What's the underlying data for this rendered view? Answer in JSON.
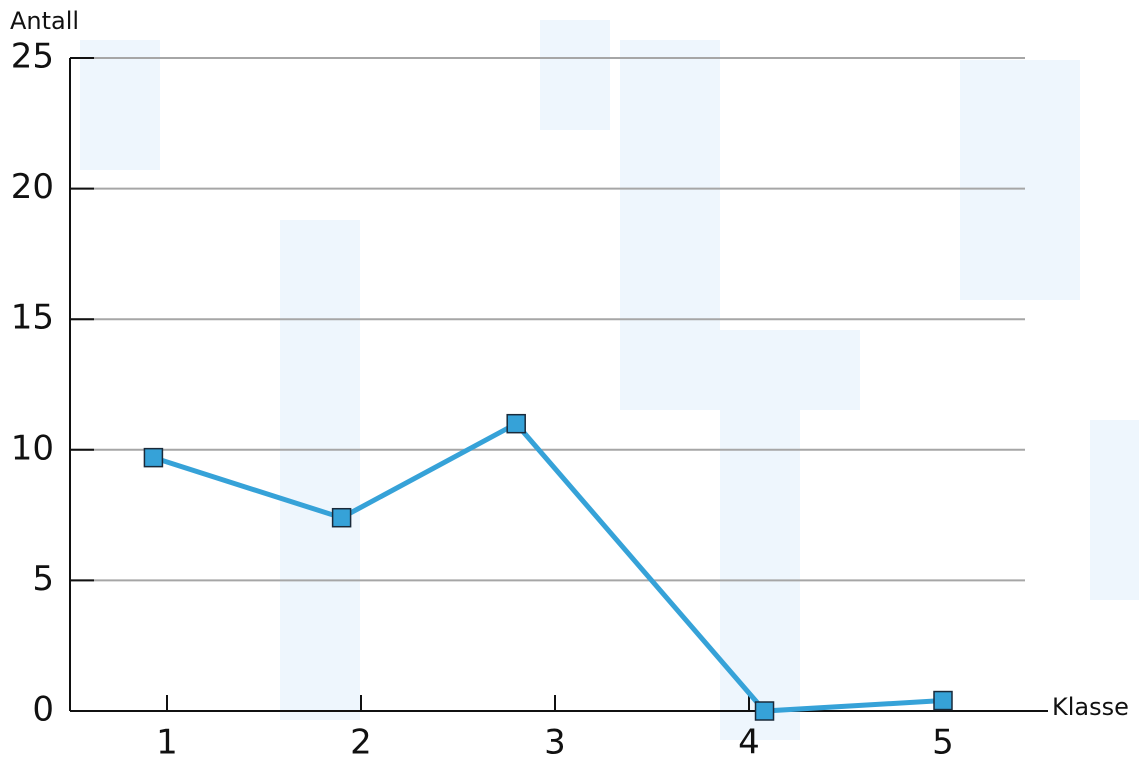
{
  "chart_data": {
    "type": "line",
    "y_label": "Antall",
    "x_label": "Klasse",
    "x": [
      0.93,
      1.9,
      2.8,
      4.08,
      5.0
    ],
    "series": [
      {
        "color": "#36a2d8",
        "values": [
          9.7,
          7.4,
          11.0,
          0,
          0.4
        ]
      }
    ],
    "xlim": [
      0.5,
      5.5
    ],
    "xticks": [
      1,
      2,
      3,
      4,
      5
    ],
    "ylim": [
      0,
      25
    ],
    "yticks": [
      0,
      5,
      10,
      15,
      20,
      25
    ],
    "grid": true
  }
}
